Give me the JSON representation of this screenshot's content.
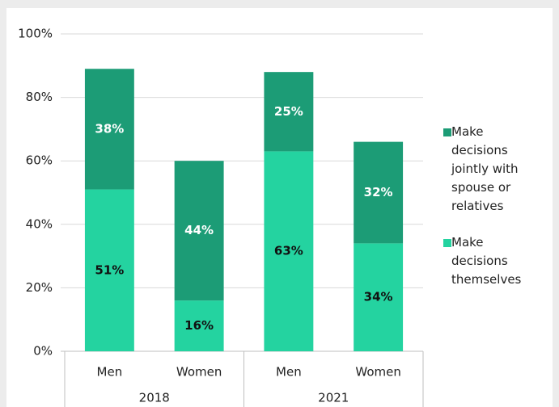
{
  "chart_data": {
    "type": "bar",
    "stacked": true,
    "groups": [
      {
        "name": "2018",
        "categories": [
          "Men",
          "Women"
        ]
      },
      {
        "name": "2021",
        "categories": [
          "Men",
          "Women"
        ]
      }
    ],
    "series": [
      {
        "name": "Make decisions themselves",
        "color": "#24d3a0",
        "label_color": "#111111",
        "values": [
          51,
          16,
          63,
          34
        ],
        "value_labels": [
          "51%",
          "16%",
          "63%",
          "34%"
        ]
      },
      {
        "name": "Make decisions jointly with spouse or relatives",
        "color": "#1c9c76",
        "label_color": "#ffffff",
        "values": [
          38,
          44,
          25,
          32
        ],
        "value_labels": [
          "38%",
          "44%",
          "25%",
          "32%"
        ]
      }
    ],
    "ylim": [
      0,
      100
    ],
    "yticks": [
      {
        "value": 0,
        "label": "0%"
      },
      {
        "value": 20,
        "label": "20%"
      },
      {
        "value": 40,
        "label": "40%"
      },
      {
        "value": 60,
        "label": "60%"
      },
      {
        "value": 80,
        "label": "80%"
      },
      {
        "value": 100,
        "label": "100%"
      }
    ],
    "grid": true,
    "legend": "right"
  }
}
